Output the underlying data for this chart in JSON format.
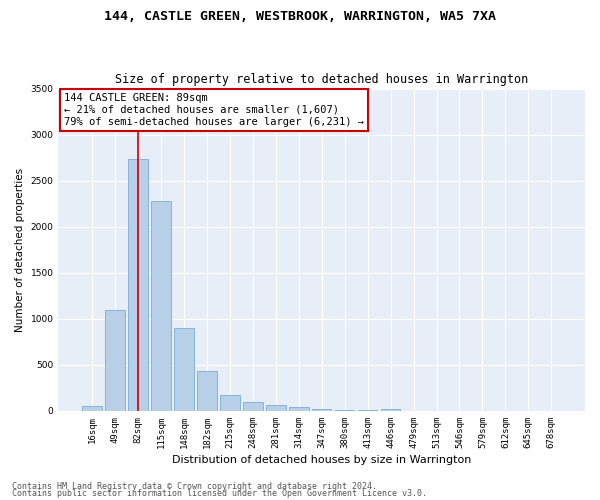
{
  "title": "144, CASTLE GREEN, WESTBROOK, WARRINGTON, WA5 7XA",
  "subtitle": "Size of property relative to detached houses in Warrington",
  "xlabel": "Distribution of detached houses by size in Warrington",
  "ylabel": "Number of detached properties",
  "footer1": "Contains HM Land Registry data © Crown copyright and database right 2024.",
  "footer2": "Contains public sector information licensed under the Open Government Licence v3.0.",
  "categories": [
    "16sqm",
    "49sqm",
    "82sqm",
    "115sqm",
    "148sqm",
    "182sqm",
    "215sqm",
    "248sqm",
    "281sqm",
    "314sqm",
    "347sqm",
    "380sqm",
    "413sqm",
    "446sqm",
    "479sqm",
    "513sqm",
    "546sqm",
    "579sqm",
    "612sqm",
    "645sqm",
    "678sqm"
  ],
  "values": [
    50,
    1100,
    2730,
    2280,
    900,
    430,
    170,
    95,
    65,
    40,
    25,
    15,
    10,
    25,
    0,
    0,
    0,
    0,
    0,
    0,
    0
  ],
  "bar_color": "#b8cfe8",
  "bar_edge_color": "#7aadd4",
  "figure_bg": "#ffffff",
  "plot_bg": "#e8eef8",
  "grid_color": "#ffffff",
  "vline_x": 2,
  "vline_color": "#cc0000",
  "annotation_text": "144 CASTLE GREEN: 89sqm\n← 21% of detached houses are smaller (1,607)\n79% of semi-detached houses are larger (6,231) →",
  "annotation_box_color": "#ffffff",
  "annotation_border_color": "#cc0000",
  "ylim": [
    0,
    3500
  ],
  "yticks": [
    0,
    500,
    1000,
    1500,
    2000,
    2500,
    3000,
    3500
  ],
  "title_fontsize": 9.5,
  "subtitle_fontsize": 8.5,
  "xlabel_fontsize": 8,
  "ylabel_fontsize": 7.5,
  "annotation_fontsize": 7.5,
  "tick_fontsize": 6.5,
  "footer_fontsize": 6.0
}
